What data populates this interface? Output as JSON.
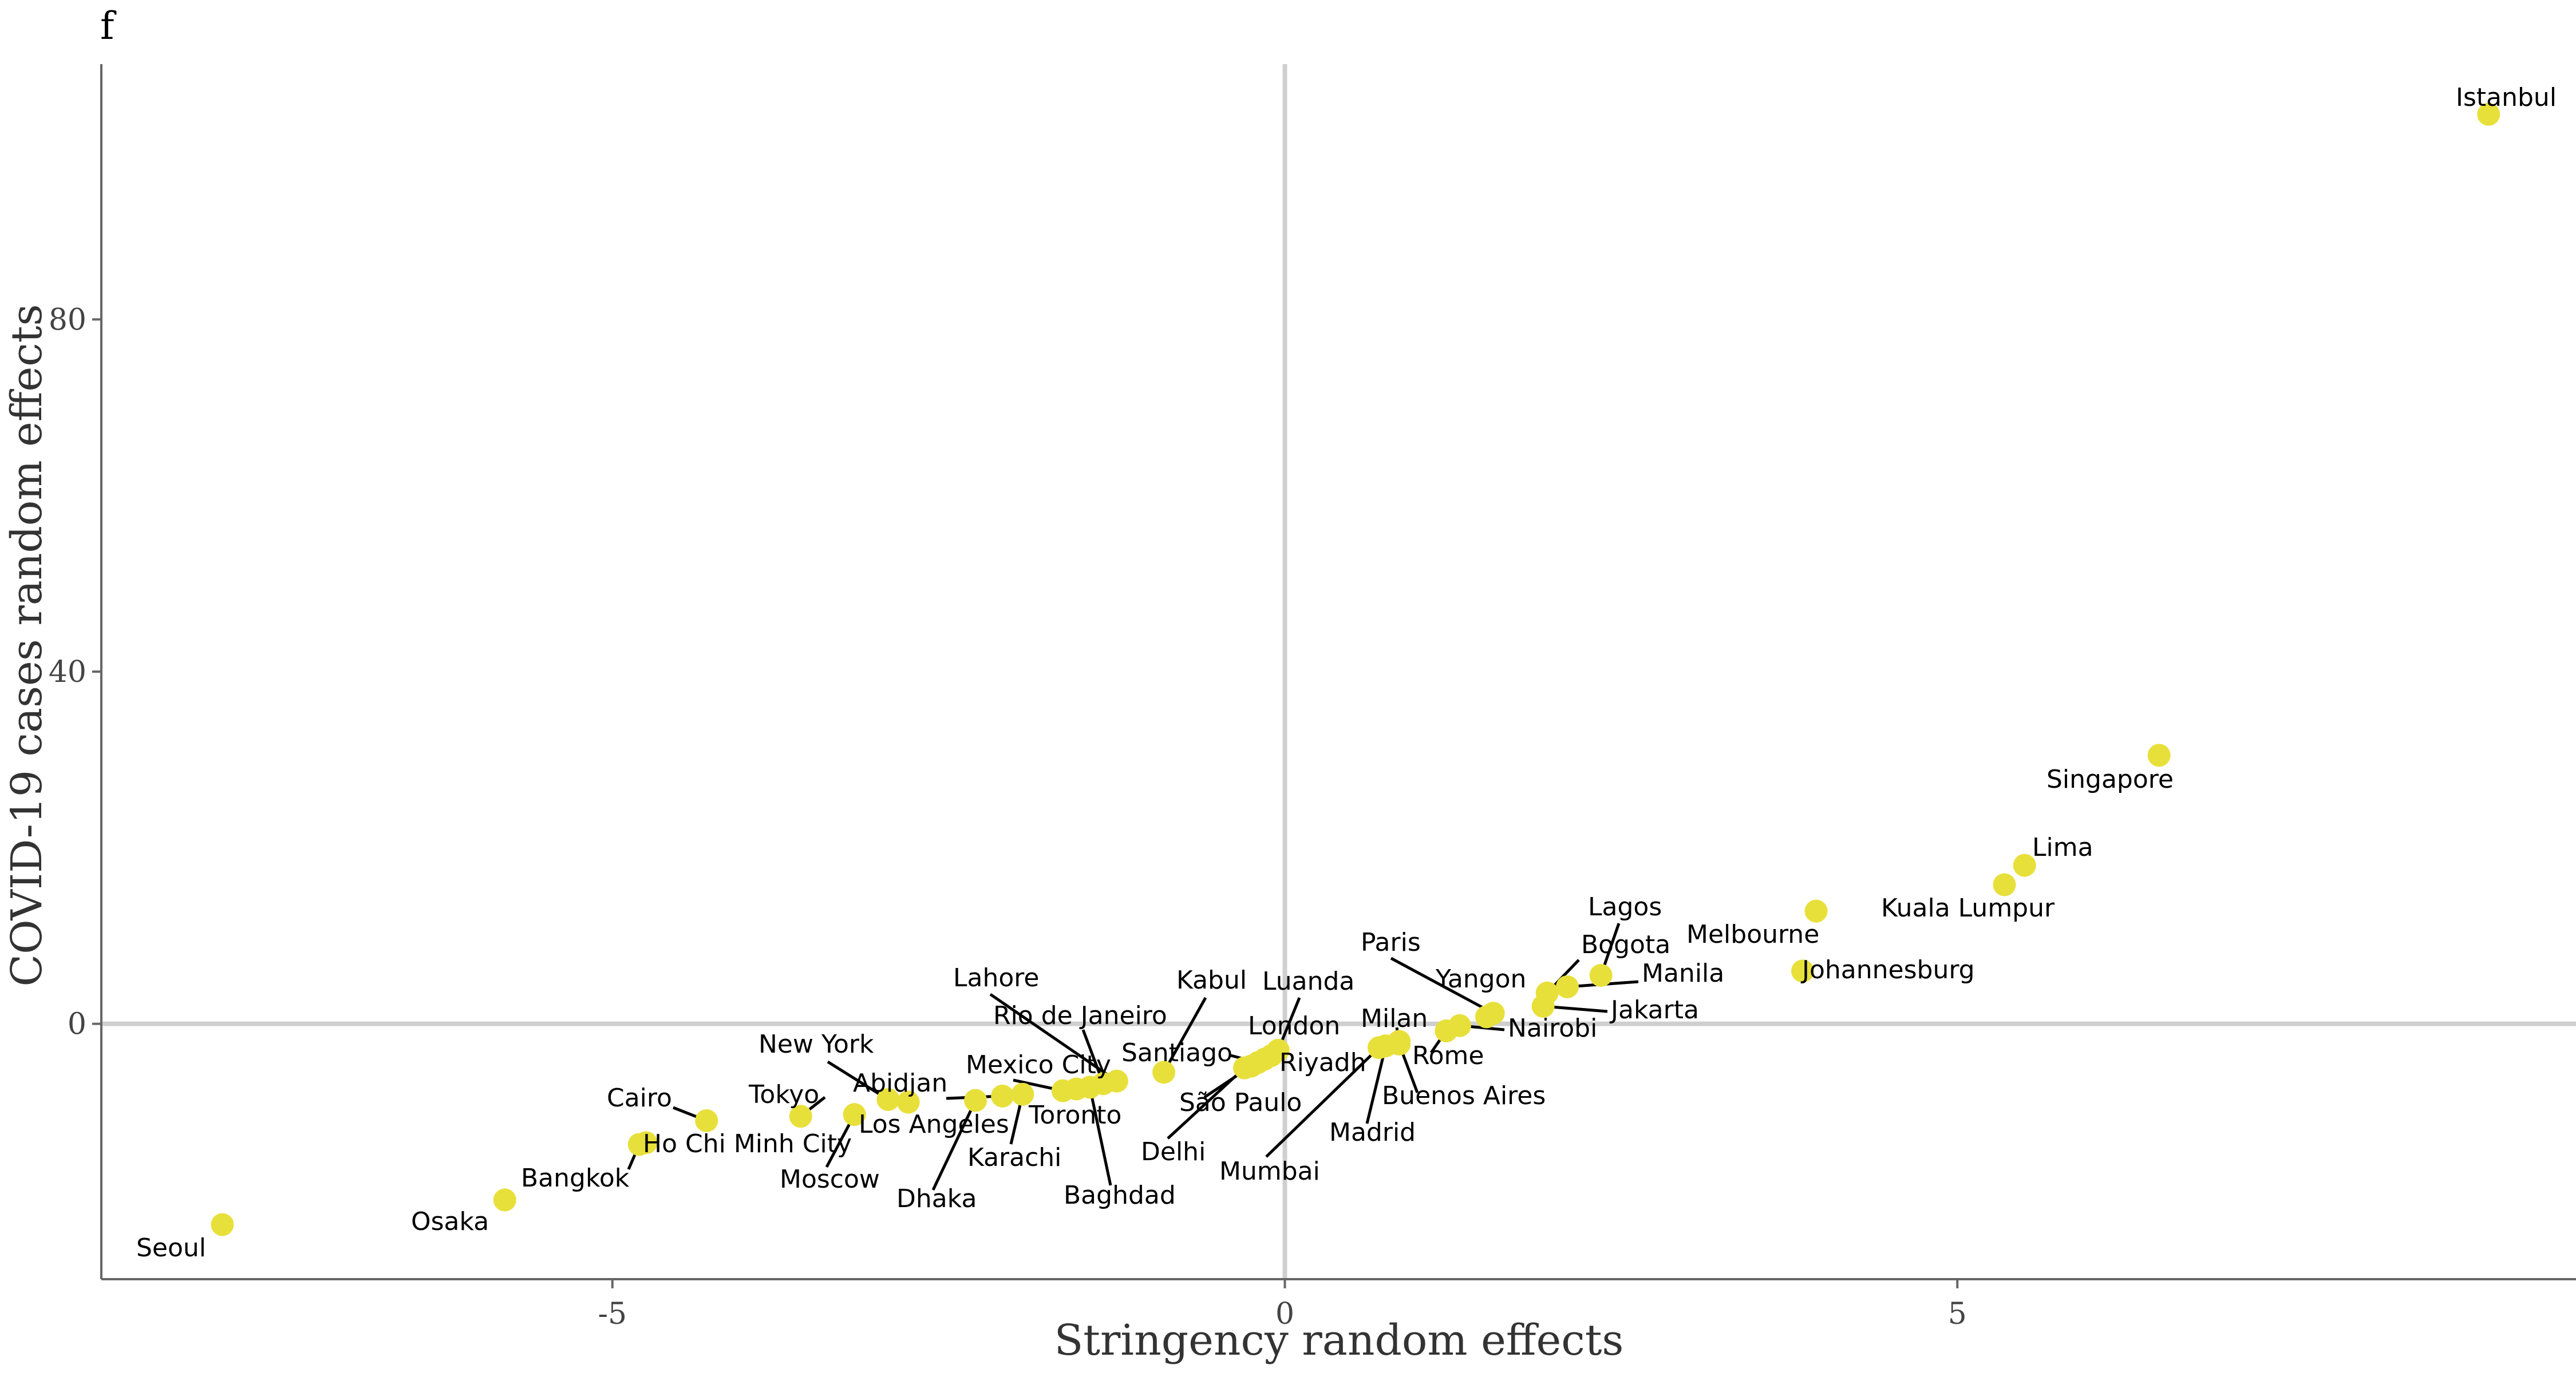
{
  "panel_tag": "f",
  "chart_data": {
    "type": "scatter",
    "title": "",
    "xlabel": "Stringency random effects",
    "ylabel": "COVID-19 cases random effects",
    "xlim": [
      -8.8,
      9.6
    ],
    "ylim": [
      -29,
      109
    ],
    "xticks": [
      -5,
      0,
      5
    ],
    "yticks": [
      0,
      40,
      80
    ],
    "grid": false,
    "reference_lines": {
      "x": 0,
      "y": 0
    },
    "point_color": "#E8E03A",
    "points": [
      {
        "name": "Istanbul",
        "x": 8.95,
        "y": 103.3
      },
      {
        "name": "Singapore",
        "x": 6.5,
        "y": 30.5
      },
      {
        "name": "Lima",
        "x": 5.5,
        "y": 18.0
      },
      {
        "name": "Kuala Lumpur",
        "x": 5.35,
        "y": 15.8
      },
      {
        "name": "Melbourne",
        "x": 3.95,
        "y": 12.8
      },
      {
        "name": "Johannesburg",
        "x": 3.85,
        "y": 6.0
      },
      {
        "name": "Lagos",
        "x": 2.35,
        "y": 5.5
      },
      {
        "name": "Manila",
        "x": 2.1,
        "y": 4.2
      },
      {
        "name": "Bogota",
        "x": 1.95,
        "y": 3.5
      },
      {
        "name": "Jakarta",
        "x": 1.92,
        "y": 2.0
      },
      {
        "name": "Paris",
        "x": 1.55,
        "y": 1.2
      },
      {
        "name": "Yangon",
        "x": 1.5,
        "y": 0.8
      },
      {
        "name": "Nairobi",
        "x": 1.3,
        "y": -0.2
      },
      {
        "name": "Rome",
        "x": 1.2,
        "y": -0.8
      },
      {
        "name": "Milan",
        "x": 0.85,
        "y": -2.0
      },
      {
        "name": "Buenos Aires",
        "x": 0.85,
        "y": -2.3
      },
      {
        "name": "Madrid",
        "x": 0.75,
        "y": -2.5
      },
      {
        "name": "Mumbai",
        "x": 0.7,
        "y": -2.7
      },
      {
        "name": "Luanda",
        "x": -0.05,
        "y": -3.0
      },
      {
        "name": "London",
        "x": -0.1,
        "y": -3.6
      },
      {
        "name": "Riyadh",
        "x": -0.15,
        "y": -4.0
      },
      {
        "name": "Santiago",
        "x": -0.2,
        "y": -4.4
      },
      {
        "name": "São Paulo",
        "x": -0.25,
        "y": -4.8
      },
      {
        "name": "Delhi",
        "x": -0.3,
        "y": -5.0
      },
      {
        "name": "Kabul",
        "x": -0.9,
        "y": -5.5
      },
      {
        "name": "Lahore",
        "x": -1.25,
        "y": -6.5
      },
      {
        "name": "Rio de Janeiro",
        "x": -1.35,
        "y": -6.8
      },
      {
        "name": "Baghdad",
        "x": -1.45,
        "y": -7.2
      },
      {
        "name": "Toronto",
        "x": -1.55,
        "y": -7.4
      },
      {
        "name": "Mexico City",
        "x": -1.65,
        "y": -7.6
      },
      {
        "name": "Karachi",
        "x": -1.95,
        "y": -8.0
      },
      {
        "name": "Abidjan",
        "x": -2.1,
        "y": -8.2
      },
      {
        "name": "Dhaka",
        "x": -2.3,
        "y": -8.7
      },
      {
        "name": "Los Angeles",
        "x": -2.8,
        "y": -8.9
      },
      {
        "name": "New York",
        "x": -2.95,
        "y": -8.6
      },
      {
        "name": "Moscow",
        "x": -3.2,
        "y": -10.3
      },
      {
        "name": "Tokyo",
        "x": -3.6,
        "y": -10.5
      },
      {
        "name": "Cairo",
        "x": -4.3,
        "y": -11.0
      },
      {
        "name": "Ho Chi Minh City",
        "x": -4.75,
        "y": -13.5
      },
      {
        "name": "Bangkok",
        "x": -4.8,
        "y": -13.7
      },
      {
        "name": "Osaka",
        "x": -5.8,
        "y": -20.0
      },
      {
        "name": "Seoul",
        "x": -7.9,
        "y": -22.8
      }
    ]
  }
}
